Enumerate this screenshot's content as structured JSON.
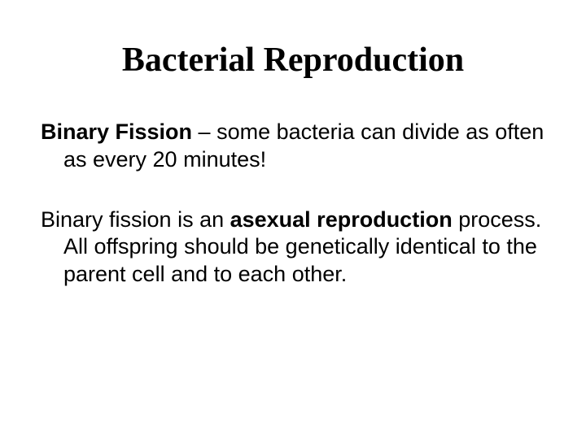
{
  "type": "slide",
  "background_color": "#ffffff",
  "text_color": "#000000",
  "title": {
    "text": "Bacterial Reproduction",
    "font_family": "Times New Roman",
    "font_weight": "bold",
    "font_size_pt": 32,
    "align": "center"
  },
  "paragraphs": [
    {
      "segments": [
        {
          "text": "Binary Fission",
          "bold": true
        },
        {
          "text": " – some bacteria can divide as often as every 20 minutes!",
          "bold": false
        }
      ],
      "font_family": "Arial",
      "font_size_pt": 20
    },
    {
      "segments": [
        {
          "text": "Binary fission is an ",
          "bold": false
        },
        {
          "text": "asexual reproduction",
          "bold": true
        },
        {
          "text": " process.  All offspring should be genetically identical to the parent cell and to each other.",
          "bold": false
        }
      ],
      "font_family": "Arial",
      "font_size_pt": 20
    }
  ],
  "text": {
    "title": "Bacterial Reproduction",
    "p1_s1": "Binary Fission",
    "p1_s2": " – some bacteria can divide as often as every 20 minutes!",
    "p2_s1": "Binary fission is an ",
    "p2_s2": "asexual reproduction",
    "p2_s3": " process.  All offspring should be genetically identical to the parent cell and to each other."
  }
}
